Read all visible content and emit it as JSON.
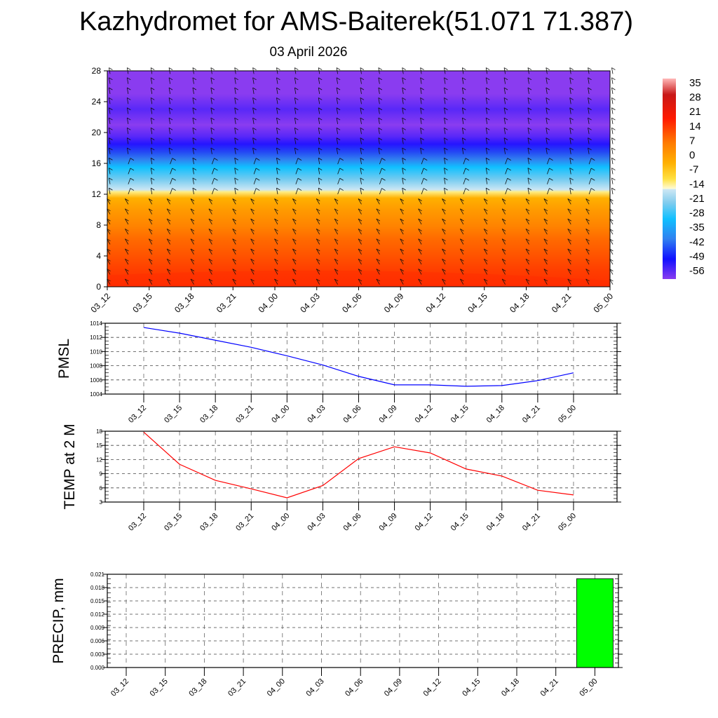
{
  "title": "Kazhydromet for AMS-Baiterek(51.071 71.387)",
  "subtitle": "03 April 2026",
  "chart_data": [
    {
      "type": "heatmap",
      "name": "temperature-wind-cross-section",
      "x_labels": [
        "03_12",
        "03_15",
        "03_18",
        "03_21",
        "04_00",
        "04_03",
        "04_06",
        "04_09",
        "04_12",
        "04_15",
        "04_18",
        "04_21",
        "05_00"
      ],
      "y_ticks": [
        0,
        4,
        8,
        12,
        16,
        20,
        24,
        28
      ],
      "ylim": [
        0,
        28
      ],
      "colorbar_labels": [
        "35",
        "28",
        "21",
        "14",
        "7",
        "0",
        "-7",
        "-14",
        "-21",
        "-28",
        "-35",
        "-42",
        "-49",
        "-56"
      ],
      "colorbar_range": [
        -60,
        38
      ],
      "profile_levels": [
        0,
        2,
        4,
        6,
        8,
        10,
        11.5,
        12.3,
        12.6,
        14,
        15.5,
        16.5,
        17.5,
        18.5,
        19.5,
        21,
        23,
        25,
        28
      ],
      "profile_values": [
        20,
        18,
        15,
        12,
        8,
        4,
        0,
        -10,
        -15,
        -22,
        -28,
        -35,
        -45,
        -55,
        -58,
        -60,
        -58,
        -60,
        -60
      ]
    },
    {
      "type": "line",
      "name": "pmsl",
      "ylabel": "PMSL",
      "x": [
        "03_12",
        "03_15",
        "03_18",
        "03_21",
        "04_00",
        "04_03",
        "04_06",
        "04_09",
        "04_12",
        "04_15",
        "04_18",
        "04_21",
        "05_00"
      ],
      "values": [
        1013.4,
        1012.6,
        1011.6,
        1010.6,
        1009.4,
        1008.1,
        1006.5,
        1005.3,
        1005.3,
        1005.1,
        1005.2,
        1005.9,
        1007.0
      ],
      "ylim": [
        1004,
        1014
      ],
      "y_ticks": [
        "1004",
        "1006",
        "1008",
        "1010",
        "1012",
        "1014"
      ],
      "color": "#0000ff"
    },
    {
      "type": "line",
      "name": "temp-2m",
      "ylabel": "TEMP at 2 M",
      "x": [
        "03_12",
        "03_15",
        "03_18",
        "03_21",
        "04_00",
        "04_03",
        "04_06",
        "04_09",
        "04_12",
        "04_15",
        "04_18",
        "04_21",
        "05_00"
      ],
      "values": [
        17.8,
        11.0,
        7.6,
        5.8,
        3.9,
        6.5,
        12.2,
        14.7,
        13.4,
        10.0,
        8.5,
        5.5,
        4.5
      ],
      "ylim": [
        3,
        18
      ],
      "y_ticks": [
        "3",
        "6",
        "9",
        "12",
        "15",
        "18"
      ],
      "color": "#ff0000"
    },
    {
      "type": "bar",
      "name": "precip",
      "ylabel": "PRECIP, mm",
      "x": [
        "03_12",
        "03_15",
        "03_18",
        "03_21",
        "04_00",
        "04_03",
        "04_06",
        "04_09",
        "04_12",
        "04_15",
        "04_18",
        "04_21",
        "05_00"
      ],
      "values": [
        0,
        0,
        0,
        0,
        0,
        0,
        0,
        0,
        0,
        0,
        0,
        0,
        0.02
      ],
      "ylim": [
        0,
        0.021
      ],
      "y_ticks": [
        "0.000",
        "0.003",
        "0.006",
        "0.009",
        "0.012",
        "0.015",
        "0.018",
        "0.021"
      ],
      "color": "#00ff00"
    }
  ]
}
